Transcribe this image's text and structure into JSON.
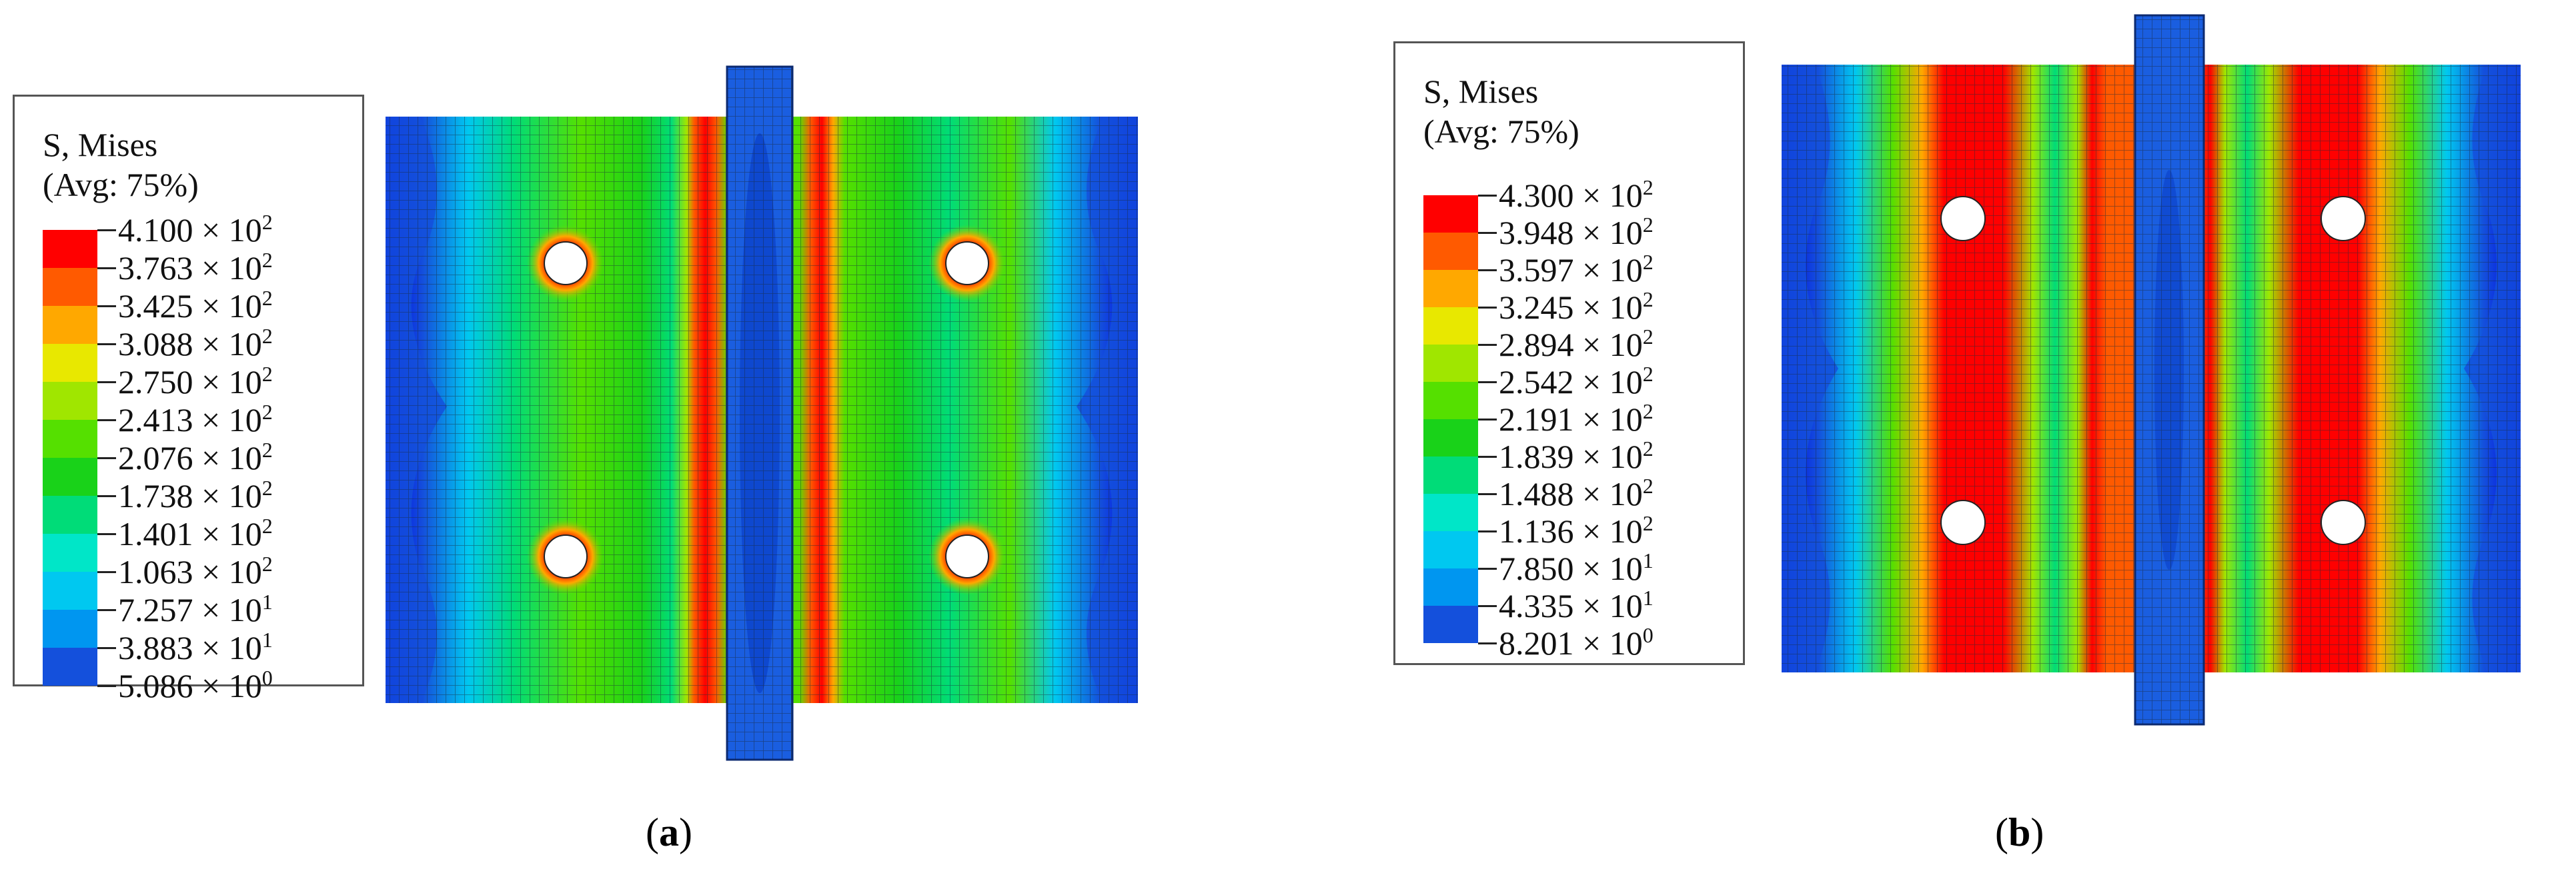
{
  "panels": [
    {
      "id": "a",
      "caption_open": "(",
      "caption_letter": "a",
      "caption_close": ")",
      "legend": {
        "title": "S, Mises",
        "avg": "(Avg:  75%)",
        "levels": [
          {
            "mant": "4.100",
            "exp": "2"
          },
          {
            "mant": "3.763",
            "exp": "2"
          },
          {
            "mant": "3.425",
            "exp": "2"
          },
          {
            "mant": "3.088",
            "exp": "2"
          },
          {
            "mant": "2.750",
            "exp": "2"
          },
          {
            "mant": "2.413",
            "exp": "2"
          },
          {
            "mant": "2.076",
            "exp": "2"
          },
          {
            "mant": "1.738",
            "exp": "2"
          },
          {
            "mant": "1.401",
            "exp": "2"
          },
          {
            "mant": "1.063",
            "exp": "2"
          },
          {
            "mant": "7.257",
            "exp": "1"
          },
          {
            "mant": "3.883",
            "exp": "1"
          },
          {
            "mant": "5.086",
            "exp": "0"
          }
        ],
        "colors": [
          "#ff0000",
          "#ff5a00",
          "#ffa800",
          "#e8e800",
          "#a0e600",
          "#55e000",
          "#19d219",
          "#00dc78",
          "#00e6c8",
          "#00c8f0",
          "#0096f0",
          "#1450dc",
          "#0000e6"
        ]
      }
    },
    {
      "id": "b",
      "caption_open": "(",
      "caption_letter": "b",
      "caption_close": ")",
      "legend": {
        "title": "S, Mises",
        "avg": "(Avg:  75%)",
        "levels": [
          {
            "mant": "4.300",
            "exp": "2"
          },
          {
            "mant": "3.948",
            "exp": "2"
          },
          {
            "mant": "3.597",
            "exp": "2"
          },
          {
            "mant": "3.245",
            "exp": "2"
          },
          {
            "mant": "2.894",
            "exp": "2"
          },
          {
            "mant": "2.542",
            "exp": "2"
          },
          {
            "mant": "2.191",
            "exp": "2"
          },
          {
            "mant": "1.839",
            "exp": "2"
          },
          {
            "mant": "1.488",
            "exp": "2"
          },
          {
            "mant": "1.136",
            "exp": "2"
          },
          {
            "mant": "7.850",
            "exp": "1"
          },
          {
            "mant": "4.335",
            "exp": "1"
          },
          {
            "mant": "8.201",
            "exp": "0"
          }
        ],
        "colors": [
          "#ff0000",
          "#ff5a00",
          "#ffa800",
          "#e8e800",
          "#a0e600",
          "#55e000",
          "#19d219",
          "#00dc78",
          "#00e6c8",
          "#00c8f0",
          "#0096f0",
          "#1450dc",
          "#0000e6"
        ]
      }
    }
  ],
  "times_symbol": "×",
  "base": "10"
}
